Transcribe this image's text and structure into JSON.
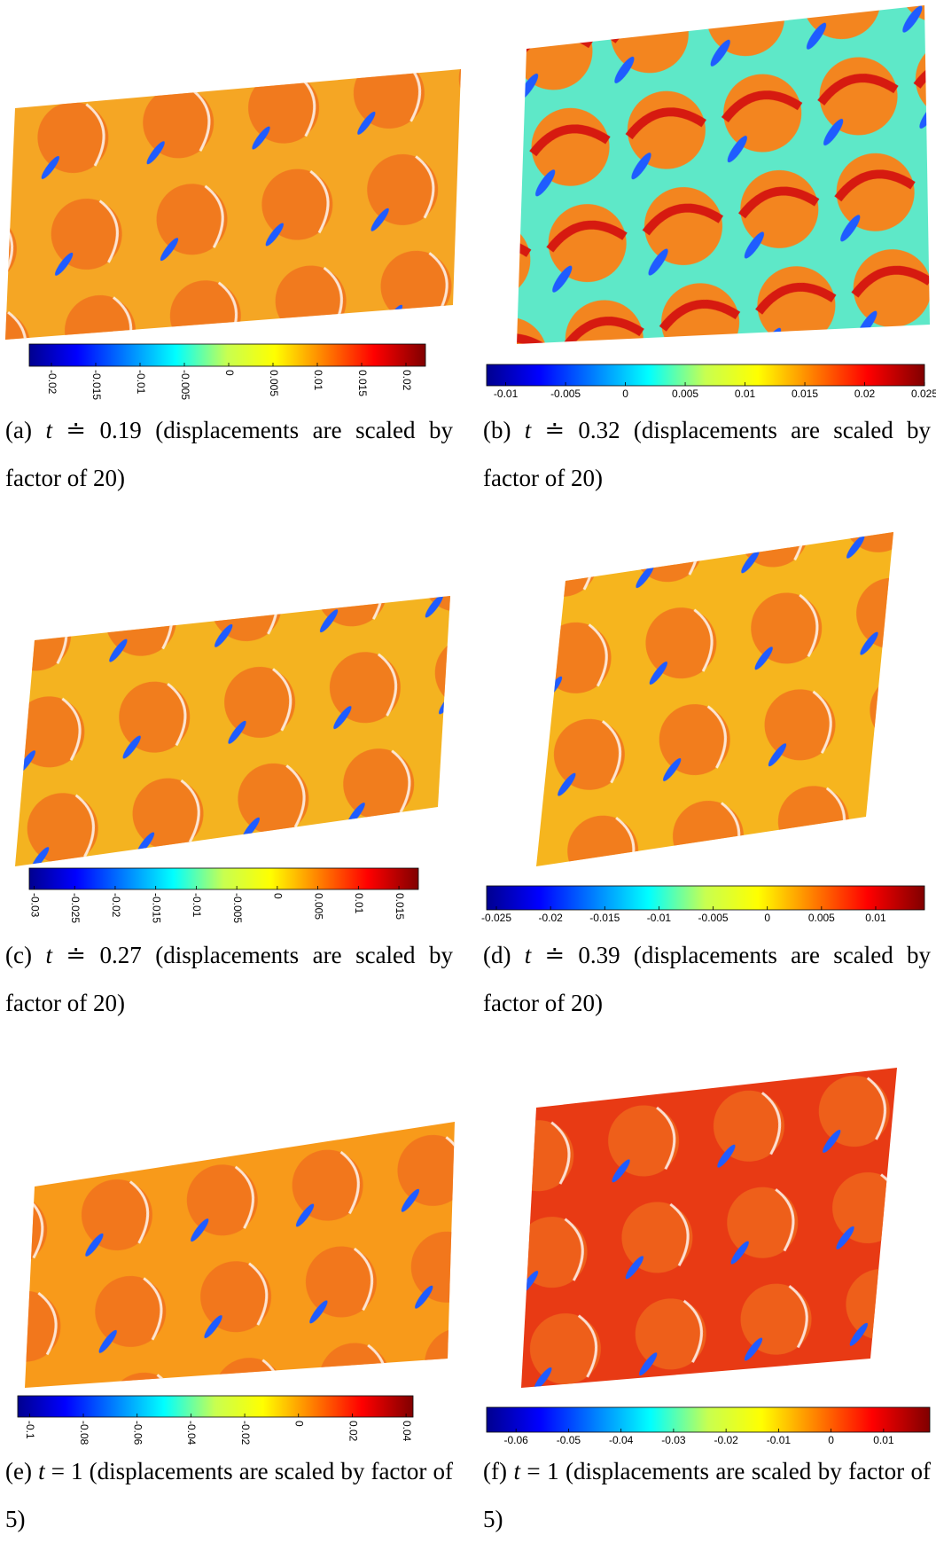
{
  "panels": [
    {
      "caption": {
        "label": "(a)",
        "variable": "t",
        "relation": "≐ 0.19",
        "text": "(displacements are scaled by factor of 20)"
      },
      "colorbar": {
        "lim": [
          -0.0225,
          0.0222
        ],
        "ticks": [
          -0.02,
          -0.015,
          -0.01,
          -0.005,
          0,
          0.005,
          0.01,
          0.015,
          0.02
        ],
        "rotated_labels": true
      }
    },
    {
      "caption": {
        "label": "(b)",
        "variable": "t",
        "relation": "≐ 0.32",
        "text": "(displacements are scaled by factor of 20)"
      },
      "colorbar": {
        "lim": [
          -0.0116,
          0.025
        ],
        "ticks": [
          -0.01,
          -0.005,
          0,
          0.005,
          0.01,
          0.015,
          0.02,
          0.025
        ],
        "rotated_labels": false
      }
    },
    {
      "caption": {
        "label": "(c)",
        "variable": "t",
        "relation": "≐ 0.27",
        "text": "(displacements are scaled by factor of 20)"
      },
      "colorbar": {
        "lim": [
          -0.0306,
          0.0174
        ],
        "ticks": [
          -0.03,
          -0.025,
          -0.02,
          -0.015,
          -0.01,
          -0.005,
          0,
          0.005,
          0.01,
          0.015
        ],
        "rotated_labels": true
      }
    },
    {
      "caption": {
        "label": "(d)",
        "variable": "t",
        "relation": "≐ 0.39",
        "text": "(displacements are scaled by factor of 20)"
      },
      "colorbar": {
        "lim": [
          -0.0259,
          0.0145
        ],
        "ticks": [
          -0.025,
          -0.02,
          -0.015,
          -0.01,
          -0.005,
          0,
          0.005,
          0.01
        ],
        "rotated_labels": false
      }
    },
    {
      "caption": {
        "label": "(e)",
        "variable": "t",
        "relation": "= 1",
        "text": "(displacements are scaled by factor of 5)"
      },
      "colorbar": {
        "lim": [
          -0.1044,
          0.0426
        ],
        "ticks": [
          -0.1,
          -0.08,
          -0.06,
          -0.04,
          -0.02,
          0,
          0.02,
          0.04
        ],
        "rotated_labels": true
      }
    },
    {
      "caption": {
        "label": "(f)",
        "variable": "t",
        "relation": "= 1",
        "text": "(displacements are scaled by factor of 5)"
      },
      "colorbar": {
        "lim": [
          -0.0656,
          0.0188
        ],
        "ticks": [
          -0.06,
          -0.05,
          -0.04,
          -0.03,
          -0.02,
          -0.01,
          0,
          0.01
        ],
        "rotated_labels": false
      }
    }
  ]
}
